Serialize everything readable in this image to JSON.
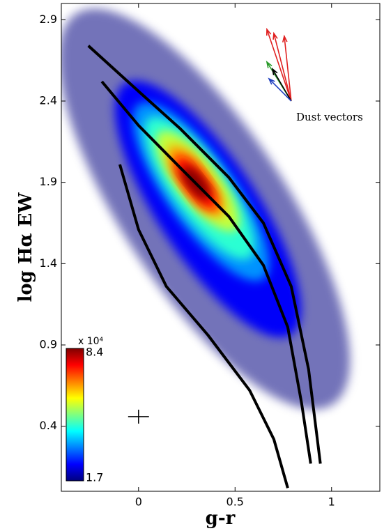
{
  "chart_data": {
    "type": "density-scatter",
    "xlabel": "g-r",
    "ylabel": "log Hα EW",
    "xlim": [
      -0.4,
      1.25
    ],
    "ylim": [
      0,
      3
    ],
    "xticks": [
      0,
      0.5,
      1
    ],
    "yticks": [
      0.4,
      0.9,
      1.4,
      1.9,
      2.4,
      2.9
    ],
    "density_contours": [
      {
        "level": 1.7,
        "ends": [
          [
            -0.324,
            2.936
          ],
          [
            1.007,
            0.536
          ]
        ],
        "ratio": 0.35
      },
      {
        "level": 2.5,
        "ends": [
          [
            -0.072,
            2.507
          ],
          [
            0.791,
            0.964
          ]
        ],
        "ratio": 0.33
      },
      {
        "level": 3.5,
        "ends": [
          [
            0,
            2.379
          ],
          [
            0.647,
            1.307
          ]
        ],
        "ratio": 0.32
      },
      {
        "level": 4.5,
        "ends": [
          [
            0.054,
            2.293
          ],
          [
            0.576,
            1.436
          ]
        ],
        "ratio": 0.32
      },
      {
        "level": 5.5,
        "ends": [
          [
            0.108,
            2.207
          ],
          [
            0.504,
            1.607
          ]
        ],
        "ratio": 0.34
      },
      {
        "level": 6.5,
        "ends": [
          [
            0.162,
            2.121
          ],
          [
            0.432,
            1.693
          ]
        ],
        "ratio": 0.36
      },
      {
        "level": 7.5,
        "ends": [
          [
            0.198,
            2.057
          ],
          [
            0.396,
            1.736
          ]
        ],
        "ratio": 0.38
      },
      {
        "level": 8.4,
        "ends": [
          [
            0.234,
            1.993
          ],
          [
            0.36,
            1.8
          ]
        ],
        "ratio": 0.42
      }
    ],
    "colorbar": {
      "range": [
        1.7,
        8.4
      ],
      "ticks": [
        1.7,
        8.4
      ],
      "multiplier_label": "x 10⁴"
    },
    "curves": [
      {
        "color": "#000000",
        "x": [
          -0.26,
          0,
          0.216,
          0.468,
          0.647,
          0.791,
          0.881,
          0.942
        ],
        "y": [
          2.74,
          2.46,
          2.23,
          1.93,
          1.65,
          1.26,
          0.75,
          0.17
        ]
      },
      {
        "color": "#000000",
        "x": [
          -0.19,
          0,
          0.216,
          0.468,
          0.647,
          0.773,
          0.845,
          0.892
        ],
        "y": [
          2.52,
          2.25,
          1.99,
          1.69,
          1.39,
          1.01,
          0.54,
          0.17
        ]
      },
      {
        "color": "#000000",
        "x": [
          -0.097,
          0,
          0.144,
          0.36,
          0.576,
          0.701,
          0.773
        ],
        "y": [
          2.01,
          1.61,
          1.26,
          0.96,
          0.62,
          0.32,
          0.02
        ]
      }
    ],
    "dust_vectors": {
      "label": "Dust vectors",
      "origin": [
        0.791,
        2.4
      ],
      "arrows": [
        {
          "color": "#e02020",
          "tip": [
            0.665,
            2.841
          ]
        },
        {
          "color": "#e02020",
          "tip": [
            0.701,
            2.816
          ]
        },
        {
          "color": "#e02020",
          "tip": [
            0.755,
            2.799
          ]
        },
        {
          "color": "#2a9a2a",
          "tip": [
            0.665,
            2.64
          ]
        },
        {
          "color": "#000000",
          "tip": [
            0.694,
            2.597
          ]
        },
        {
          "color": "#2040c0",
          "tip": [
            0.676,
            2.537
          ]
        }
      ]
    },
    "error_bar": {
      "x": 0,
      "y": 0.459,
      "xerr": 0.054,
      "yerr": 0.043
    }
  }
}
